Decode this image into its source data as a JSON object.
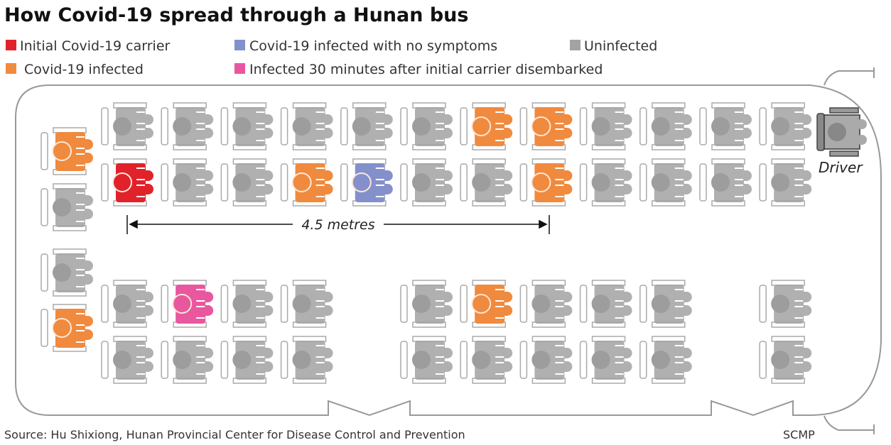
{
  "title": "How Covid-19 spread through a Hunan bus",
  "legend": [
    {
      "key": "R",
      "label": "Initial Covid-19 carrier",
      "color": "#e1222b"
    },
    {
      "key": "B",
      "label": "Covid-19 infected with no symptoms",
      "color": "#8490cc"
    },
    {
      "key": "U",
      "label": "Uninfected",
      "color": "#a3a3a3"
    },
    {
      "key": "O",
      "label": "Covid-19 infected",
      "color": "#f08a3e"
    },
    {
      "key": "P",
      "label": "Infected 30 minutes after initial carrier disembarked",
      "color": "#e9579f"
    }
  ],
  "measurement": "4.5 metres",
  "driver_label": "Driver",
  "source": "Source: Hu Shixiong, Hunan Provincial Center for Disease Control and Prevention",
  "credit": "SCMP",
  "seats": {
    "side_column": [
      "O",
      "U",
      "U",
      "O"
    ],
    "front_rows": [
      [
        "U",
        "U",
        "U",
        "U",
        "U",
        "U",
        "O",
        "O",
        "U",
        "U",
        "U",
        "U"
      ],
      [
        "R",
        "U",
        "U",
        "O",
        "B",
        "U",
        "U",
        "O",
        "U",
        "U",
        "U",
        "U"
      ]
    ],
    "rear_rows": [
      [
        "U",
        "P",
        "U",
        "U",
        "",
        "U",
        "O",
        "U",
        "U",
        "U",
        "",
        "U"
      ],
      [
        "U",
        "U",
        "U",
        "U",
        "",
        "U",
        "U",
        "U",
        "U",
        "U",
        "",
        "U"
      ]
    ]
  }
}
